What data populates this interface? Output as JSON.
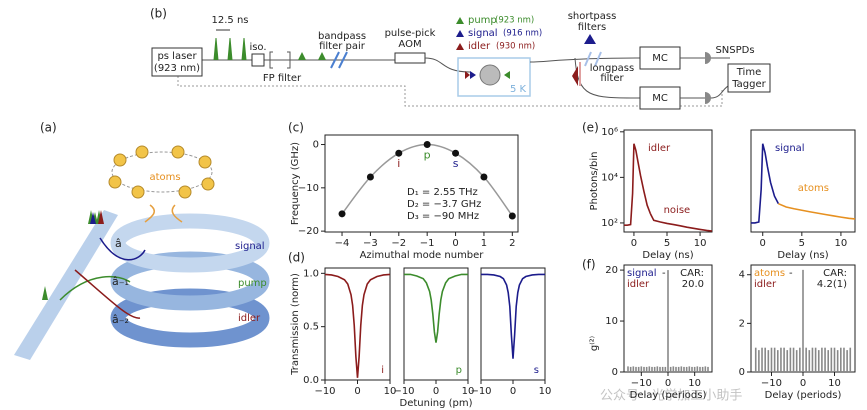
{
  "panels": [
    "(a)",
    "(b)",
    "(c)",
    "(d)",
    "(e)",
    "(f)"
  ],
  "setup": {
    "pulse_period": "12.5 ns",
    "laser": [
      "ps laser",
      "(923 nm)"
    ],
    "isolator": "iso.",
    "fp_filter": "FP filter",
    "bandpass": [
      "bandpass",
      "filter pair"
    ],
    "aom": [
      "pulse-pick",
      "AOM"
    ],
    "legend": [
      {
        "name": "pump",
        "wavelength": "(923 nm)",
        "color": "#3c8c2c"
      },
      {
        "name": "signal",
        "wavelength": "(916 nm)",
        "color": "#1c1c8c"
      },
      {
        "name": "idler",
        "wavelength": "(930 nm)",
        "color": "#8b1c1c"
      }
    ],
    "cryostat": "5 K",
    "shortpass": [
      "shortpass",
      "filters"
    ],
    "longpass": [
      "longpass",
      "filter"
    ],
    "mc": [
      "MC",
      "MC"
    ],
    "snspds": "SNSPDs",
    "tagger": [
      "Time",
      "Tagger"
    ]
  },
  "ring_diagram": {
    "atoms": "atoms",
    "modes": [
      "â",
      "â₋₁",
      "â₋₂"
    ],
    "fields": [
      {
        "name": "signal",
        "color": "#1c1c8c"
      },
      {
        "name": "pump",
        "color": "#3c8c2c"
      },
      {
        "name": "idler",
        "color": "#8b1c1c"
      }
    ]
  },
  "watermark": "公众号 · 光学加工小助手",
  "chart_data": [
    {
      "type": "scatter",
      "x": [
        -4,
        -3,
        -2,
        -1,
        0,
        1,
        2
      ],
      "values": [
        -16,
        -7.5,
        -2,
        0,
        -2,
        -7.5,
        -16.5
      ],
      "color": "#111111",
      "curve_color": "#999999",
      "xlim": [
        -4.6,
        2.2
      ],
      "ylim": [
        -20.2,
        2.2
      ],
      "xticks": [
        {
          "value": -4,
          "label": "−4"
        },
        {
          "value": -3,
          "label": "−3"
        },
        {
          "value": -2,
          "label": "−2"
        },
        {
          "value": -1,
          "label": "−1"
        },
        0,
        1,
        2
      ],
      "yticks": [
        0,
        {
          "value": -10,
          "label": "−10"
        },
        {
          "value": -20,
          "label": "−20"
        }
      ],
      "xlabel": "Azimuthal mode number",
      "ylabel": "Frequency (GHz)",
      "annotations": [
        {
          "text": "i",
          "color": "#8b1c1c"
        },
        {
          "text": "p",
          "color": "#3c8c2c"
        },
        {
          "text": "s",
          "color": "#1c1c8c"
        }
      ],
      "text_lines": [
        "D₁ = 2.55 THz",
        "D₂ = −3.7 GHz",
        "D₃ = −90 MHz"
      ]
    },
    {
      "type": "line",
      "x": [
        -10,
        -8,
        -6,
        -4,
        -3,
        -2,
        -1.5,
        -1,
        -0.5,
        0,
        0.5,
        1,
        1.5,
        2,
        3,
        4,
        6,
        8,
        10
      ],
      "series": [
        {
          "color": "#8b1c1c",
          "values": [
            0.99,
            0.985,
            0.97,
            0.94,
            0.9,
            0.8,
            0.7,
            0.51,
            0.22,
            0.02,
            0.22,
            0.51,
            0.7,
            0.8,
            0.9,
            0.94,
            0.97,
            0.985,
            0.99
          ]
        }
      ],
      "xlim": [
        -10,
        10
      ],
      "ylim": [
        0,
        1.05
      ],
      "xticks": [
        {
          "value": -10,
          "label": "−10"
        },
        0,
        10
      ],
      "yticks": [
        {
          "value": 0,
          "label": "0.0"
        },
        {
          "value": 0.5,
          "label": "0.5"
        },
        {
          "value": 1,
          "label": "1.0"
        }
      ],
      "ylabel": "Transmission (norm)",
      "label": {
        "text": "i",
        "color": "#8b1c1c"
      }
    },
    {
      "type": "line",
      "x": [
        -10,
        -8,
        -6,
        -4,
        -3,
        -2,
        -1.5,
        -1,
        -0.5,
        0,
        0.5,
        1,
        1.5,
        2,
        3,
        4,
        6,
        8,
        10
      ],
      "series": [
        {
          "color": "#3c8c2c",
          "values": [
            0.99,
            0.99,
            0.975,
            0.95,
            0.91,
            0.83,
            0.75,
            0.62,
            0.45,
            0.35,
            0.45,
            0.62,
            0.75,
            0.83,
            0.91,
            0.95,
            0.975,
            0.99,
            0.99
          ]
        }
      ],
      "xlim": [
        -10,
        10
      ],
      "ylim": [
        0,
        1.05
      ],
      "xticks": [
        {
          "value": -10,
          "label": "−10"
        },
        0,
        10
      ],
      "xlabel": "Detuning (pm)",
      "label": {
        "text": "p",
        "color": "#3c8c2c"
      }
    },
    {
      "type": "line",
      "x": [
        -10,
        -8,
        -6,
        -4,
        -3,
        -2,
        -1.5,
        -1,
        -0.5,
        0,
        0.5,
        1,
        1.5,
        2,
        3,
        4,
        6,
        8,
        10
      ],
      "series": [
        {
          "color": "#1c1c8c",
          "values": [
            0.99,
            0.99,
            0.985,
            0.97,
            0.95,
            0.89,
            0.82,
            0.69,
            0.42,
            0.2,
            0.42,
            0.69,
            0.82,
            0.89,
            0.95,
            0.97,
            0.985,
            0.99,
            0.99
          ]
        }
      ],
      "xlim": [
        -10,
        10
      ],
      "ylim": [
        0,
        1.05
      ],
      "xticks": [
        {
          "value": -10,
          "label": "−10"
        },
        0,
        10
      ],
      "label": {
        "text": "s",
        "color": "#1c1c8c"
      }
    },
    {
      "type": "line",
      "log_y": true,
      "xlim": [
        -1.5,
        11.8
      ],
      "ylim": [
        40,
        1200000
      ],
      "xticks": [
        0,
        5,
        10
      ],
      "yticks": [
        {
          "value": 100,
          "label": "10²"
        },
        {
          "value": 10000,
          "label": "10⁴"
        },
        {
          "value": 1000000,
          "label": "10⁶"
        }
      ],
      "xlabel": "Delay (ns)",
      "ylabel": "Photons/bin",
      "series": [
        {
          "name": "idler",
          "color": "#8b1c1c",
          "x": [
            -1.5,
            -1,
            -0.5,
            -0.2,
            0,
            0.3,
            0.6,
            1,
            1.5,
            2,
            2.5
          ],
          "values": [
            80,
            80,
            85,
            2000,
            300000,
            150000,
            50000,
            12000,
            2500,
            600,
            250
          ]
        },
        {
          "name": "noise",
          "color": "#8b1c1c",
          "x": [
            2.5,
            3,
            4,
            5,
            6,
            7,
            8,
            9,
            10,
            11,
            11.8
          ],
          "values": [
            250,
            130,
            110,
            95,
            85,
            75,
            65,
            58,
            52,
            47,
            44
          ]
        }
      ]
    },
    {
      "type": "line",
      "log_y": true,
      "xlim": [
        -1.5,
        11.8
      ],
      "ylim": [
        40,
        1200000
      ],
      "xticks": [
        0,
        5,
        10
      ],
      "xlabel": "Delay (ns)",
      "series": [
        {
          "name": "signal",
          "color": "#1c1c8c",
          "x": [
            -1.5,
            -1,
            -0.5,
            -0.2,
            0,
            0.3,
            0.6,
            1,
            1.5,
            2
          ],
          "values": [
            100,
            100,
            110,
            3000,
            300000,
            120000,
            30000,
            6000,
            1500,
            700
          ]
        },
        {
          "name": "atoms",
          "color": "#e69020",
          "x": [
            2,
            3,
            4,
            5,
            6,
            7,
            8,
            9,
            10,
            11,
            11.8
          ],
          "values": [
            700,
            500,
            420,
            360,
            310,
            270,
            235,
            205,
            180,
            160,
            150
          ]
        }
      ]
    },
    {
      "type": "bar",
      "color": "#888888",
      "x": [
        -15,
        -14,
        -13,
        -12,
        -11,
        -10,
        -9,
        -8,
        -7,
        -6,
        -5,
        -4,
        -3,
        -2,
        -1,
        0,
        1,
        2,
        3,
        4,
        5,
        6,
        7,
        8,
        9,
        10,
        11,
        12,
        13,
        14,
        15
      ],
      "values": [
        1.1,
        1.0,
        1.1,
        1.0,
        1.0,
        1.1,
        1.0,
        1.0,
        1.1,
        1.0,
        1.0,
        1.1,
        1.0,
        1.0,
        1.0,
        20.0,
        1.0,
        1.1,
        1.0,
        1.0,
        1.1,
        1.0,
        1.0,
        1.1,
        1.0,
        1.0,
        1.1,
        1.0,
        1.0,
        1.1,
        1.0
      ],
      "xlim": [
        -16.5,
        16.5
      ],
      "ylim": [
        0,
        21
      ],
      "xticks": [
        {
          "value": -10,
          "label": "−10"
        },
        0,
        10
      ],
      "yticks": [
        0,
        10,
        20
      ],
      "xlabel": "Delay (periods)",
      "ylabel": "g⁽²⁾",
      "pair": [
        {
          "text": "signal",
          "color": "#1c1c8c"
        },
        {
          "text": "idler",
          "color": "#8b1c1c"
        }
      ],
      "pair_joiner": "-",
      "car_lines": [
        "CAR:",
        "20.0"
      ]
    },
    {
      "type": "bar",
      "color": "#888888",
      "x": [
        -15,
        -14,
        -13,
        -12,
        -11,
        -10,
        -9,
        -8,
        -7,
        -6,
        -5,
        -4,
        -3,
        -2,
        -1,
        0,
        1,
        2,
        3,
        4,
        5,
        6,
        7,
        8,
        9,
        10,
        11,
        12,
        13,
        14,
        15
      ],
      "values": [
        1.0,
        0.9,
        1.0,
        1.0,
        0.9,
        1.0,
        1.0,
        0.9,
        1.0,
        1.0,
        0.9,
        1.0,
        1.0,
        0.9,
        1.0,
        4.2,
        1.0,
        0.9,
        1.0,
        1.0,
        0.9,
        1.0,
        1.0,
        0.9,
        1.0,
        1.0,
        0.9,
        1.0,
        1.0,
        0.9,
        1.0
      ],
      "xlim": [
        -16.5,
        16.5
      ],
      "ylim": [
        0,
        4.4
      ],
      "xticks": [
        {
          "value": -10,
          "label": "−10"
        },
        0,
        10
      ],
      "yticks": [
        0,
        2,
        4
      ],
      "xlabel": "Delay (periods)",
      "pair": [
        {
          "text": "atoms",
          "color": "#e69020"
        },
        {
          "text": "idler",
          "color": "#8b1c1c"
        }
      ],
      "pair_joiner": "-",
      "car_lines": [
        "CAR:",
        "4.2(1)"
      ]
    }
  ]
}
